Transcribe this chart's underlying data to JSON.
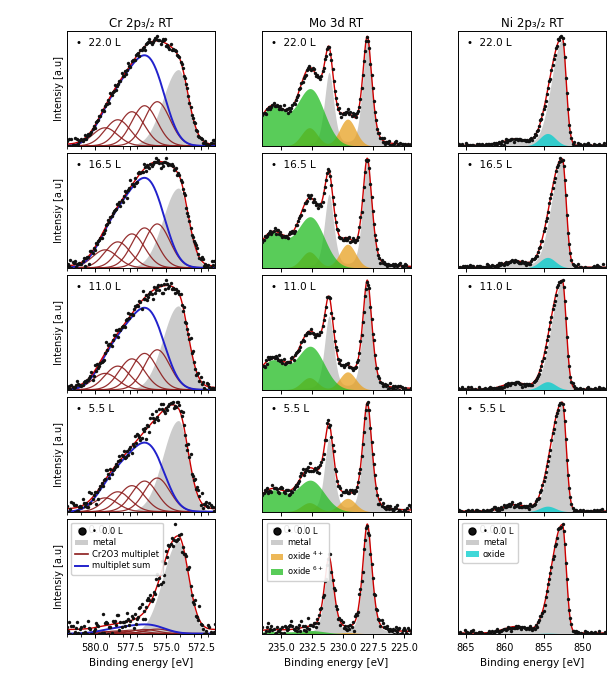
{
  "col_titles": [
    "Cr 2p₃/₂ RT",
    "Mo 3d RT",
    "Ni 2p₃/₂ RT"
  ],
  "row_labels": [
    "22.0 L",
    "16.5 L",
    "11.0 L",
    "5.5 L",
    "0.0 L"
  ],
  "cr_xlim": [
    582,
    571.5
  ],
  "mo_xlim": [
    236.5,
    224.5
  ],
  "ni_xlim": [
    866,
    847
  ],
  "background_color": "#ffffff",
  "dot_color": "#111111",
  "fit_color": "#cc0000",
  "cr_metal_color": "#aaaaaa",
  "cr_multiplet_color": "#8b1a1a",
  "cr_sum_color": "#2222cc",
  "mo_metal_color": "#aaaaaa",
  "mo_oxide4_color": "#e8a020",
  "mo_oxide6_color": "#22bb22",
  "ni_metal_color": "#aaaaaa",
  "ni_oxide_color": "#00cccc"
}
